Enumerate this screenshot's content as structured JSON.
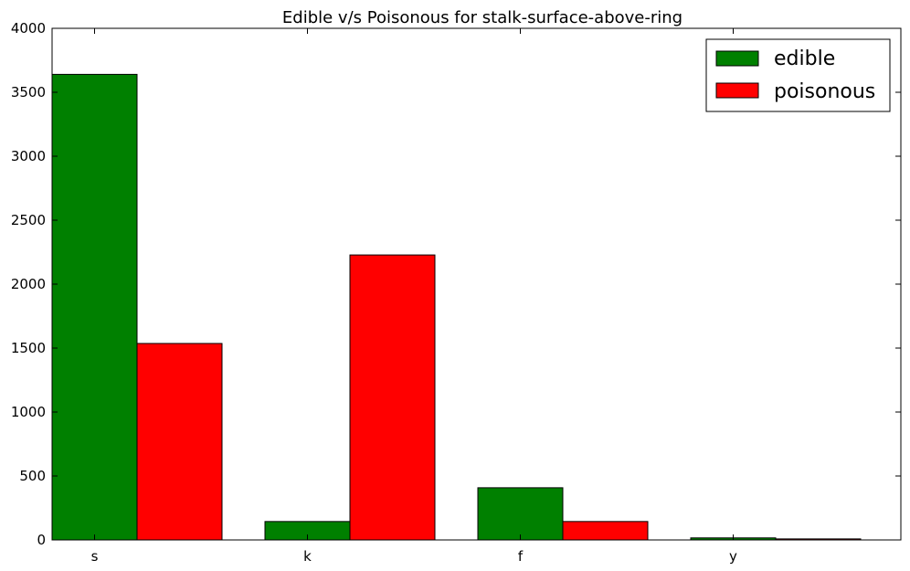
{
  "chart_data": {
    "type": "bar",
    "title": "Edible v/s Poisonous for stalk-surface-above-ring",
    "categories": [
      "s",
      "k",
      "f",
      "y"
    ],
    "series": [
      {
        "name": "edible",
        "color": "#008000",
        "values": [
          3640,
          144,
          408,
          16
        ]
      },
      {
        "name": "poisonous",
        "color": "#ff0000",
        "values": [
          1536,
          2228,
          144,
          8
        ]
      }
    ],
    "ylim": [
      0,
      4000
    ],
    "yticks": [
      0,
      500,
      1000,
      1500,
      2000,
      2500,
      3000,
      3500,
      4000
    ],
    "grid": false,
    "legend_position": "top-right"
  }
}
